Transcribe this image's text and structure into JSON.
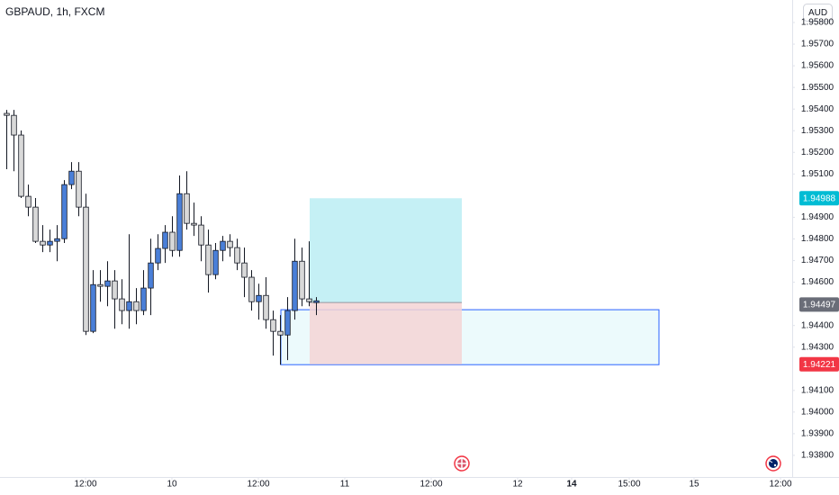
{
  "chart_data": {
    "type": "candlestick",
    "title": "GBPAUD, 1h, FXCM",
    "currency_button": "AUD",
    "x": [
      0,
      1,
      2,
      3,
      4,
      5,
      6,
      7,
      8,
      9,
      10,
      11,
      12,
      13,
      14,
      15,
      16,
      17,
      18,
      19,
      20,
      21,
      22,
      23,
      24,
      25,
      26,
      27,
      28,
      29,
      30,
      31,
      32,
      33,
      34,
      35,
      36,
      37,
      38,
      39,
      40,
      41,
      42,
      43
    ],
    "open": [
      1.9538,
      1.95371,
      1.9528,
      1.94997,
      1.94947,
      1.94789,
      1.94772,
      1.94789,
      1.94801,
      1.95051,
      1.95113,
      1.94947,
      1.94373,
      1.94589,
      1.94581,
      1.94606,
      1.94523,
      1.94469,
      1.9451,
      1.94469,
      1.94573,
      1.94689,
      1.94756,
      1.94831,
      1.94747,
      1.95009,
      1.94872,
      1.94864,
      1.94772,
      1.94635,
      1.94747,
      1.94789,
      1.9476,
      1.94689,
      1.94623,
      1.9451,
      1.94539,
      1.94427,
      1.94373,
      1.94356,
      1.94469,
      1.94697,
      1.94523,
      1.94506
    ],
    "high": [
      1.95396,
      1.95396,
      1.95301,
      1.95051,
      1.94989,
      1.94864,
      1.94843,
      1.94864,
      1.95072,
      1.95155,
      1.95155,
      1.95009,
      1.94656,
      1.94656,
      1.94697,
      1.94656,
      1.94614,
      1.94822,
      1.94573,
      1.94656,
      1.94801,
      1.94822,
      1.94864,
      1.94905,
      1.95093,
      1.95113,
      1.94968,
      1.94905,
      1.94843,
      1.94781,
      1.94814,
      1.94822,
      1.94801,
      1.9476,
      1.94656,
      1.94593,
      1.94623,
      1.94469,
      1.94448,
      1.94531,
      1.94801,
      1.9476,
      1.94789,
      1.94531
    ],
    "low": [
      1.95122,
      1.95113,
      1.94989,
      1.94905,
      1.94781,
      1.94739,
      1.94739,
      1.94697,
      1.94781,
      1.9503,
      1.94905,
      1.94356,
      1.94365,
      1.9451,
      1.94489,
      1.94385,
      1.94406,
      1.94385,
      1.94406,
      1.94448,
      1.94448,
      1.94656,
      1.94689,
      1.94718,
      1.94718,
      1.94843,
      1.94814,
      1.94697,
      1.94552,
      1.94614,
      1.94697,
      1.94718,
      1.94656,
      1.94531,
      1.94469,
      1.94427,
      1.94385,
      1.94261,
      1.94219,
      1.9424,
      1.94427,
      1.94489,
      1.94489,
      1.94448
    ],
    "close": [
      1.95371,
      1.9528,
      1.94997,
      1.94947,
      1.94789,
      1.94772,
      1.94789,
      1.94801,
      1.95051,
      1.95113,
      1.94947,
      1.94373,
      1.94589,
      1.94581,
      1.94606,
      1.94523,
      1.94469,
      1.9451,
      1.94469,
      1.94573,
      1.94689,
      1.94756,
      1.94831,
      1.94747,
      1.95009,
      1.94872,
      1.94864,
      1.94772,
      1.94635,
      1.94747,
      1.94789,
      1.9476,
      1.94689,
      1.94623,
      1.9451,
      1.94539,
      1.94427,
      1.94373,
      1.94356,
      1.94469,
      1.94697,
      1.94523,
      1.9451,
      1.94514
    ],
    "up_color": "#4a7fd8",
    "down_color": "#d9d9d9",
    "xlim": [
      -0.875,
      109.125
    ],
    "xticks": [
      {
        "value": 11,
        "label": "12:00"
      },
      {
        "value": 23,
        "label": "10"
      },
      {
        "value": 35,
        "label": "12:00"
      },
      {
        "value": 47,
        "label": "11"
      },
      {
        "value": 59,
        "label": "12:00"
      },
      {
        "value": 71,
        "label": "12"
      },
      {
        "value": 78.5,
        "label": "14"
      },
      {
        "value": 86.5,
        "label": "15:00"
      },
      {
        "value": 95.5,
        "label": "15"
      },
      {
        "value": 107.5,
        "label": "12:00"
      }
    ],
    "ylim": [
      1.937,
      1.95904
    ],
    "yticks": [
      {
        "value": 1.958,
        "label": "1.95800"
      },
      {
        "value": 1.957,
        "label": "1.95700"
      },
      {
        "value": 1.956,
        "label": "1.95600"
      },
      {
        "value": 1.955,
        "label": "1.95500"
      },
      {
        "value": 1.954,
        "label": "1.95400"
      },
      {
        "value": 1.953,
        "label": "1.95300"
      },
      {
        "value": 1.952,
        "label": "1.95200"
      },
      {
        "value": 1.951,
        "label": "1.95100"
      },
      {
        "value": 1.949,
        "label": "1.94900"
      },
      {
        "value": 1.948,
        "label": "1.94800"
      },
      {
        "value": 1.947,
        "label": "1.94700"
      },
      {
        "value": 1.946,
        "label": "1.94600"
      },
      {
        "value": 1.944,
        "label": "1.94400"
      },
      {
        "value": 1.943,
        "label": "1.94300"
      },
      {
        "value": 1.941,
        "label": "1.94100"
      },
      {
        "value": 1.94,
        "label": "1.94000"
      },
      {
        "value": 1.939,
        "label": "1.93900"
      },
      {
        "value": 1.938,
        "label": "1.93800"
      }
    ],
    "price_labels": [
      {
        "value": 1.94988,
        "color": "#00bcd4"
      },
      {
        "value": 1.94497,
        "color": "#6a6d78"
      },
      {
        "value": 1.94221,
        "color": "#f23645"
      }
    ],
    "long_position": {
      "x_start": 42.125,
      "x_end": 63.25,
      "entry": 1.94506,
      "target": 1.94988,
      "stop": 1.94221,
      "profit_color": "#b2ebf2",
      "loss_color": "#f5d3d5"
    },
    "rectangle": {
      "x_start": 38.125,
      "x_end": 90.625,
      "top": 1.94473,
      "bottom": 1.94219,
      "color": "#2962ff"
    }
  }
}
